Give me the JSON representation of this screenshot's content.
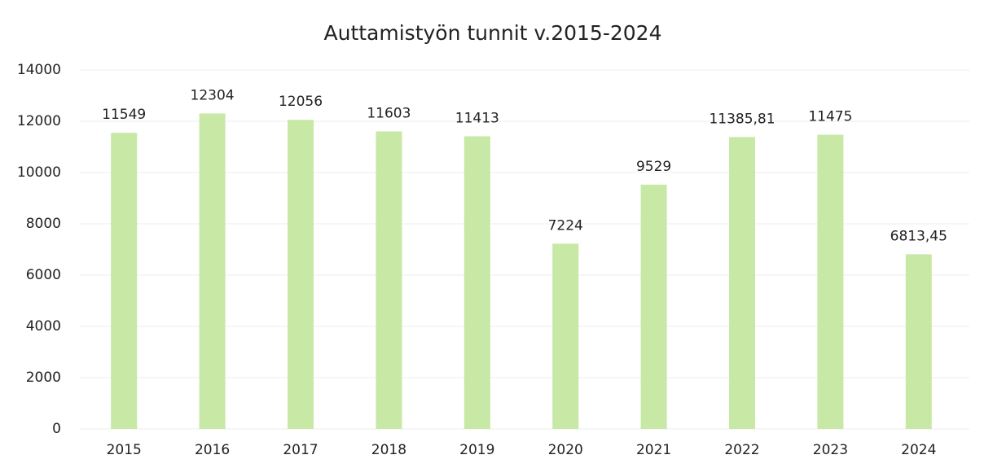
{
  "chart_data": {
    "type": "bar",
    "title": "Auttamistyön tunnit v.2015-2024",
    "categories": [
      "2015",
      "2016",
      "2017",
      "2018",
      "2019",
      "2020",
      "2021",
      "2022",
      "2023",
      "2024"
    ],
    "values": [
      11549,
      12304,
      12056,
      11603,
      11413,
      7224,
      9529,
      11385.81,
      11475,
      6813.45
    ],
    "value_labels": [
      "11549",
      "12304",
      "12056",
      "11603",
      "11413",
      "7224",
      "9529",
      "11385,81",
      "11475",
      "6813,45"
    ],
    "color": "#c8e8a6",
    "ylim": [
      0,
      14000
    ],
    "yticks": [
      0,
      2000,
      4000,
      6000,
      8000,
      10000,
      12000,
      14000
    ],
    "grid": true
  }
}
